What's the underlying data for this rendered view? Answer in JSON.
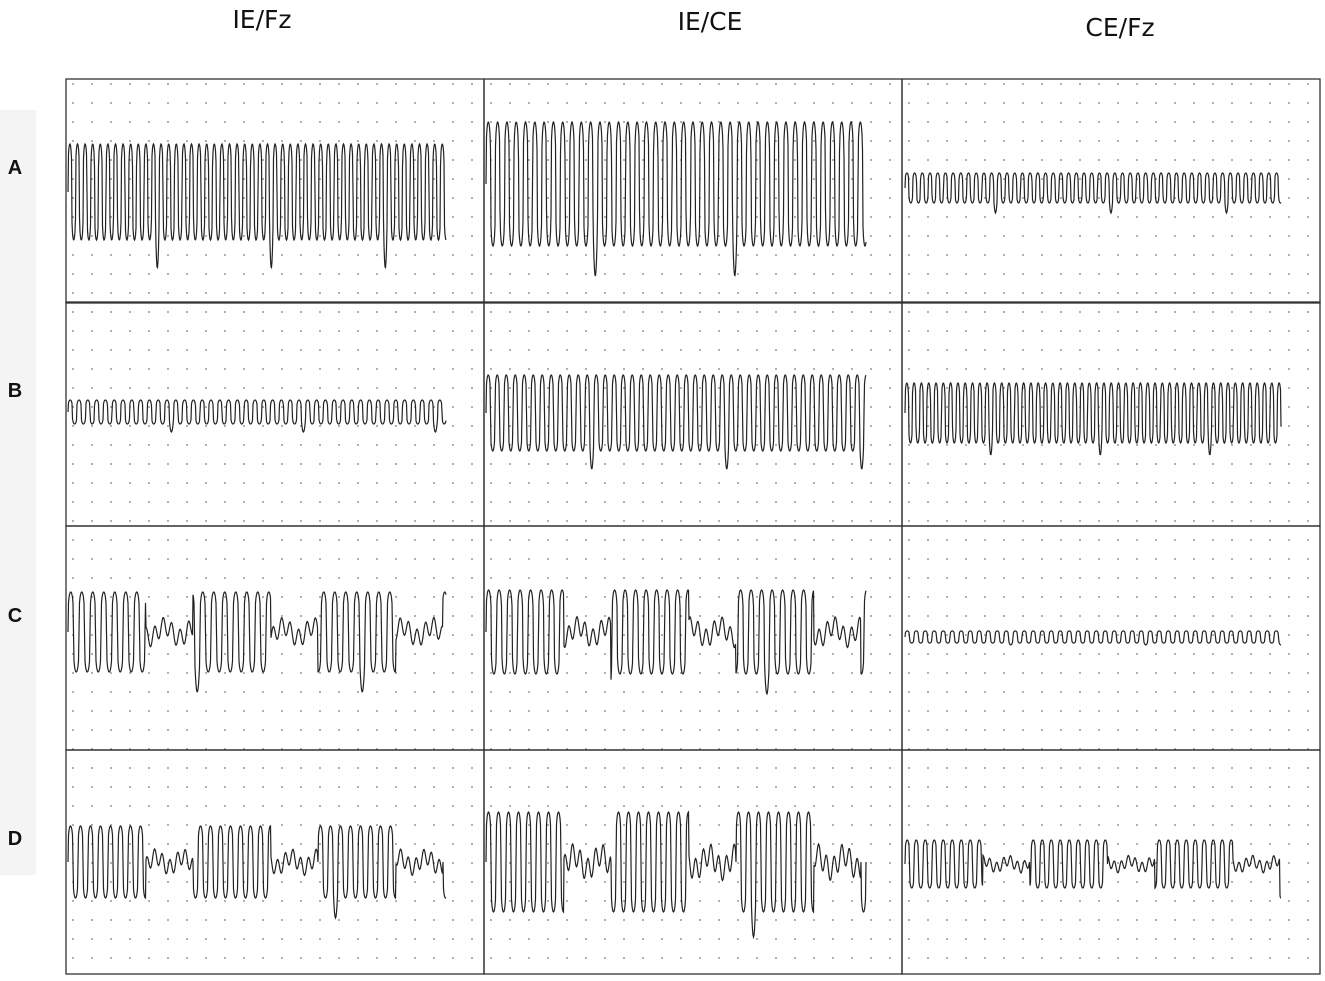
{
  "columns": [
    "IE/Fz",
    "IE/CE",
    "CE/Fz"
  ],
  "rows": [
    "A",
    "B",
    "C",
    "D"
  ]
}
